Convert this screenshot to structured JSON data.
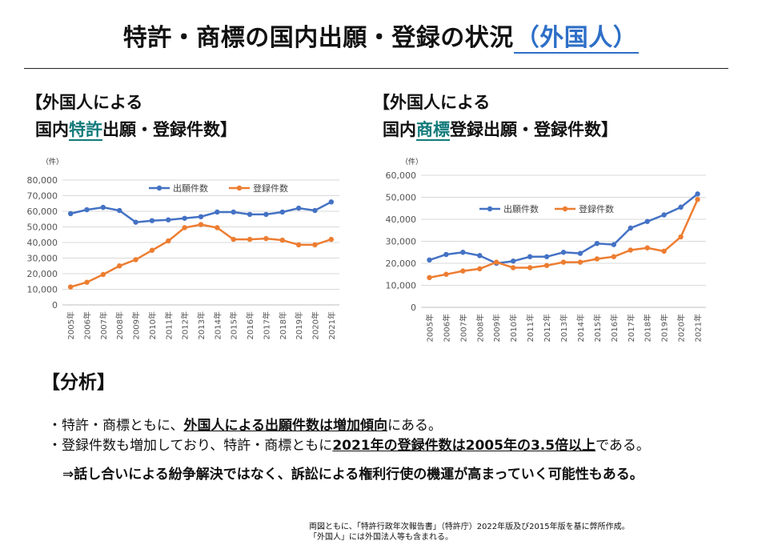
{
  "title": {
    "main": "特許・商標の国内出願・登録の状況",
    "accent": "（外国人）"
  },
  "left_heading": {
    "line1": "【外国人による",
    "line2_pre": "国内",
    "line2_hl": "特許",
    "line2_post": "出願・登録件数】"
  },
  "right_heading": {
    "line1": "【外国人による",
    "line2_pre": "国内",
    "line2_hl": "商標",
    "line2_post": "登録出願・登録件数】"
  },
  "colors": {
    "series_application": "#4472c4",
    "series_registration": "#ed7d31",
    "heading_highlight": "#127a7a",
    "title_accent": "#2e6fc7"
  },
  "chart_data": [
    {
      "type": "line",
      "unit": "（件）",
      "categories": [
        "2005年",
        "2006年",
        "2007年",
        "2008年",
        "2009年",
        "2010年",
        "2011年",
        "2012年",
        "2013年",
        "2014年",
        "2015年",
        "2016年",
        "2017年",
        "2018年",
        "2019年",
        "2020年",
        "2021年"
      ],
      "ylim": [
        0,
        80000
      ],
      "yticks": [
        0,
        10000,
        20000,
        30000,
        40000,
        50000,
        60000,
        70000,
        80000
      ],
      "ytick_labels": [
        "0",
        "10,000",
        "20,000",
        "30,000",
        "40,000",
        "50,000",
        "60,000",
        "70,000",
        "80,000"
      ],
      "grid": true,
      "legend": "top-center",
      "series": [
        {
          "name": "出願件数",
          "color": "#4472c4",
          "values": [
            58500,
            61000,
            62500,
            60500,
            53000,
            54000,
            54500,
            55500,
            56500,
            59500,
            59500,
            58000,
            58000,
            59500,
            62000,
            60500,
            66000
          ]
        },
        {
          "name": "登録件数",
          "color": "#ed7d31",
          "values": [
            11500,
            14500,
            19500,
            25000,
            29000,
            35000,
            41000,
            49500,
            51500,
            49500,
            42000,
            42000,
            42500,
            41500,
            38500,
            38500,
            42000
          ]
        }
      ]
    },
    {
      "type": "line",
      "unit": "（件）",
      "categories": [
        "2005年",
        "2006年",
        "2007年",
        "2008年",
        "2009年",
        "2010年",
        "2011年",
        "2012年",
        "2013年",
        "2014年",
        "2015年",
        "2016年",
        "2017年",
        "2018年",
        "2019年",
        "2020年",
        "2021年"
      ],
      "ylim": [
        0,
        60000
      ],
      "yticks": [
        0,
        10000,
        20000,
        30000,
        40000,
        50000,
        60000
      ],
      "ytick_labels": [
        "0",
        "10,000",
        "20,000",
        "30,000",
        "40,000",
        "50,000",
        "60,000"
      ],
      "grid": true,
      "legend": "middle-left",
      "series": [
        {
          "name": "出願件数",
          "color": "#4472c4",
          "values": [
            21500,
            24000,
            25000,
            23500,
            20000,
            21000,
            23000,
            23000,
            25000,
            24500,
            29000,
            28500,
            36000,
            39000,
            42000,
            45500,
            51500
          ]
        },
        {
          "name": "登録件数",
          "color": "#ed7d31",
          "values": [
            13500,
            15000,
            16500,
            17500,
            20500,
            18000,
            18000,
            19000,
            20500,
            20500,
            22000,
            23000,
            26000,
            27000,
            25500,
            32000,
            49000
          ]
        }
      ]
    }
  ],
  "analysis": {
    "heading": "【分析】",
    "b1_pre": "・特許・商標ともに、",
    "b1_bold": "外国人による出願件数は増加傾向",
    "b1_post": "にある。",
    "b2_pre": "・登録件数も増加しており、特許・商標ともに",
    "b2_bold": "2021年の登録件数は2005年の3.5倍以上",
    "b2_post": "である。",
    "conclusion": "⇒話し合いによる紛争解決ではなく、訴訟による権利行使の機運が高まっていく可能性もある。"
  },
  "footnote": {
    "line1": "両図ともに、「特許行政年次報告書」（特許庁）2022年版及び2015年版を基に弊所作成。",
    "line2": "「外国人」には外国法人等も含まれる。"
  }
}
